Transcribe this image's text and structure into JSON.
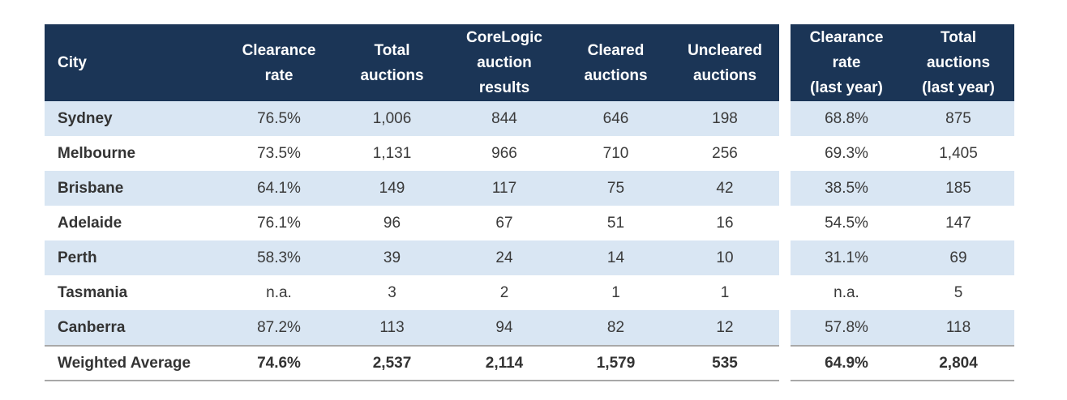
{
  "main_table": {
    "headers": [
      {
        "lines": [
          "City"
        ]
      },
      {
        "lines": [
          "Clearance",
          "rate"
        ]
      },
      {
        "lines": [
          "Total",
          "auctions"
        ]
      },
      {
        "lines": [
          "CoreLogic",
          "auction",
          "results"
        ]
      },
      {
        "lines": [
          "Cleared",
          "auctions"
        ]
      },
      {
        "lines": [
          "Uncleared",
          "auctions"
        ]
      }
    ],
    "rows": [
      {
        "cells": [
          "Sydney",
          "76.5%",
          "1,006",
          "844",
          "646",
          "198"
        ]
      },
      {
        "cells": [
          "Melbourne",
          "73.5%",
          "1,131",
          "966",
          "710",
          "256"
        ]
      },
      {
        "cells": [
          "Brisbane",
          "64.1%",
          "149",
          "117",
          "75",
          "42"
        ]
      },
      {
        "cells": [
          "Adelaide",
          "76.1%",
          "96",
          "67",
          "51",
          "16"
        ]
      },
      {
        "cells": [
          "Perth",
          "58.3%",
          "39",
          "24",
          "14",
          "10"
        ]
      },
      {
        "cells": [
          "Tasmania",
          "n.a.",
          "3",
          "2",
          "1",
          "1"
        ]
      },
      {
        "cells": [
          "Canberra",
          "87.2%",
          "113",
          "94",
          "82",
          "12"
        ]
      }
    ],
    "total": {
      "cells": [
        "Weighted Average",
        "74.6%",
        "2,537",
        "2,114",
        "1,579",
        "535"
      ]
    }
  },
  "last_year_table": {
    "headers": [
      {
        "lines": [
          "Clearance",
          "rate",
          "(last year)"
        ]
      },
      {
        "lines": [
          "Total",
          "auctions",
          "(last year)"
        ]
      }
    ],
    "rows": [
      {
        "cells": [
          "68.8%",
          "875"
        ]
      },
      {
        "cells": [
          "69.3%",
          "1,405"
        ]
      },
      {
        "cells": [
          "38.5%",
          "185"
        ]
      },
      {
        "cells": [
          "54.5%",
          "147"
        ]
      },
      {
        "cells": [
          "31.1%",
          "69"
        ]
      },
      {
        "cells": [
          "n.a.",
          "5"
        ]
      },
      {
        "cells": [
          "57.8%",
          "118"
        ]
      }
    ],
    "total": {
      "cells": [
        "64.9%",
        "2,804"
      ]
    }
  },
  "colors": {
    "header_bg": "#1b3556",
    "shaded_row": "#d9e6f3",
    "rule": "#a8a8a8"
  }
}
